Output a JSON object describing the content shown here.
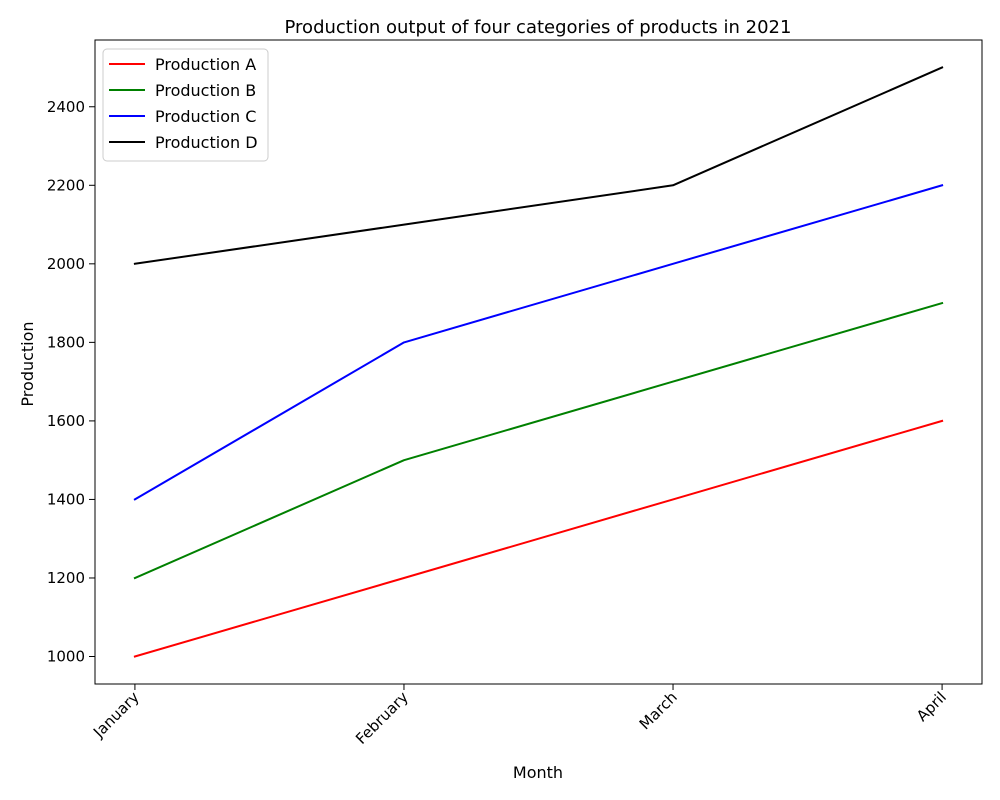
{
  "chart_data": {
    "type": "line",
    "title": "Production output of four categories of products in 2021",
    "xlabel": "Month",
    "ylabel": "Production",
    "categories": [
      "January",
      "February",
      "March",
      "April"
    ],
    "yticks": [
      1000,
      1200,
      1400,
      1600,
      1800,
      2000,
      2200,
      2400
    ],
    "ylim": [
      930,
      2570
    ],
    "grid": false,
    "legend_position": "top-left",
    "series": [
      {
        "name": "Production A",
        "color": "#ff0000",
        "values": [
          1000,
          1200,
          1400,
          1600
        ]
      },
      {
        "name": "Production B",
        "color": "#008000",
        "values": [
          1200,
          1500,
          1700,
          1900
        ]
      },
      {
        "name": "Production C",
        "color": "#0000ff",
        "values": [
          1400,
          1800,
          2000,
          2200
        ]
      },
      {
        "name": "Production D",
        "color": "#000000",
        "values": [
          2000,
          2100,
          2200,
          2500
        ]
      }
    ]
  }
}
